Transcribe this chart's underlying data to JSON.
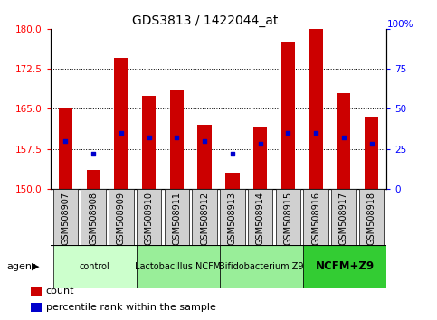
{
  "title": "GDS3813 / 1422044_at",
  "samples": [
    "GSM508907",
    "GSM508908",
    "GSM508909",
    "GSM508910",
    "GSM508911",
    "GSM508912",
    "GSM508913",
    "GSM508914",
    "GSM508915",
    "GSM508916",
    "GSM508917",
    "GSM508918"
  ],
  "count_values": [
    165.2,
    153.5,
    174.5,
    167.5,
    168.5,
    162.0,
    153.0,
    161.5,
    177.5,
    180.0,
    168.0,
    163.5
  ],
  "percentile_values": [
    30,
    22,
    35,
    32,
    32,
    30,
    22,
    28,
    35,
    35,
    32,
    28
  ],
  "ylim_left": [
    150,
    180
  ],
  "ylim_right": [
    0,
    100
  ],
  "yticks_left": [
    150,
    157.5,
    165,
    172.5,
    180
  ],
  "yticks_right": [
    0,
    25,
    50,
    75,
    100
  ],
  "bar_color": "#cc0000",
  "dot_color": "#0000cc",
  "bar_bottom": 150,
  "groups": [
    {
      "label": "control",
      "start": 0,
      "end": 3,
      "color": "#ccffcc"
    },
    {
      "label": "Lactobacillus NCFM",
      "start": 3,
      "end": 6,
      "color": "#99ee99"
    },
    {
      "label": "Bifidobacterium Z9",
      "start": 6,
      "end": 9,
      "color": "#99ee99"
    },
    {
      "label": "NCFM+Z9",
      "start": 9,
      "end": 12,
      "color": "#33cc33"
    }
  ],
  "legend_count_color": "#cc0000",
  "legend_dot_color": "#0000cc",
  "bar_width": 0.5,
  "tick_label_fontsize": 7,
  "group_label_fontsize": 7,
  "title_fontsize": 10
}
